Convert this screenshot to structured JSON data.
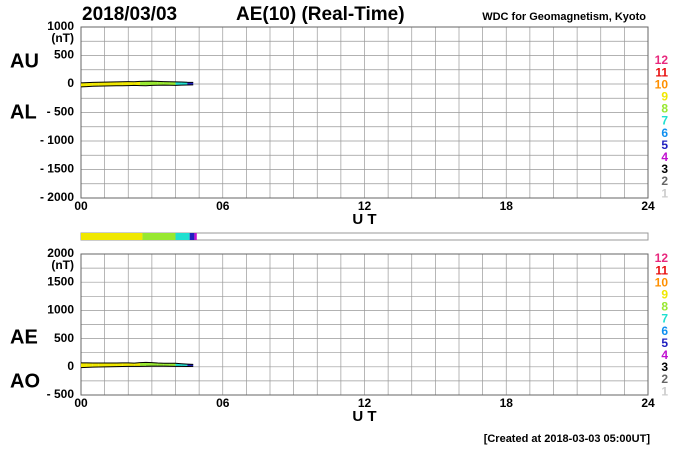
{
  "date": "2018/03/03",
  "title": "AE(10) (Real-Time)",
  "source": "WDC for Geomagnetism, Kyoto",
  "footer": "[Created at 2018-03-03 05:00UT]",
  "legend": [
    {
      "label": "12",
      "color": "#e8287d"
    },
    {
      "label": "11",
      "color": "#e81010"
    },
    {
      "label": "10",
      "color": "#ff9000"
    },
    {
      "label": "9",
      "color": "#f0e800"
    },
    {
      "label": "8",
      "color": "#98e830"
    },
    {
      "label": "7",
      "color": "#20e0d0"
    },
    {
      "label": "6",
      "color": "#1090f0"
    },
    {
      "label": "5",
      "color": "#2020c0"
    },
    {
      "label": "4",
      "color": "#c010d0"
    },
    {
      "label": "3",
      "color": "#000000"
    },
    {
      "label": "2",
      "color": "#666666"
    },
    {
      "label": "1",
      "color": "#cccccc"
    }
  ],
  "activity": [
    {
      "from": 0,
      "to": 2.6,
      "level": 9
    },
    {
      "from": 2.6,
      "to": 4,
      "level": 8
    },
    {
      "from": 4,
      "to": 4.6,
      "level": 7
    },
    {
      "from": 4.6,
      "to": 4.8,
      "level": 5
    },
    {
      "from": 4.8,
      "to": 4.9,
      "level": 4
    }
  ],
  "chart_data": [
    {
      "type": "line",
      "unit": "(nT)",
      "xlabel": "U T",
      "x": [
        0,
        0.25,
        0.5,
        0.75,
        1,
        1.25,
        1.5,
        1.75,
        2,
        2.25,
        2.5,
        2.75,
        3,
        3.25,
        3.5,
        3.75,
        4,
        4.25,
        4.5,
        4.75
      ],
      "series": [
        {
          "name": "AU",
          "color": "#000000",
          "values": [
            20,
            25,
            28,
            30,
            32,
            35,
            38,
            40,
            42,
            40,
            45,
            48,
            50,
            45,
            42,
            40,
            38,
            35,
            30,
            28
          ]
        },
        {
          "name": "AL",
          "color": "#000000",
          "values": [
            -50,
            -45,
            -40,
            -38,
            -35,
            -32,
            -30,
            -30,
            -28,
            -25,
            -28,
            -30,
            -25,
            -22,
            -20,
            -22,
            -25,
            -20,
            -18,
            -15
          ]
        }
      ],
      "xlim": [
        0,
        24
      ],
      "xticks": [
        {
          "value": 0,
          "label": "00"
        },
        {
          "value": 6,
          "label": "06"
        },
        12,
        18,
        24
      ],
      "xgrid": [
        0,
        1,
        2,
        3,
        4,
        5,
        6,
        7,
        8,
        9,
        10,
        11,
        12,
        13,
        14,
        15,
        16,
        17,
        18,
        19,
        20,
        21,
        22,
        23,
        24
      ],
      "ylim": [
        -2000,
        1000
      ],
      "yticks": [
        1000,
        500,
        0,
        {
          "value": -500,
          "label": "- 500"
        },
        {
          "value": -1000,
          "label": "- 1000"
        },
        {
          "value": -1500,
          "label": "- 1500"
        },
        {
          "value": -2000,
          "label": "- 2000"
        }
      ],
      "ygrid": [
        1000,
        750,
        500,
        250,
        0,
        -250,
        -500,
        -750,
        -1000,
        -1250,
        -1500,
        -1750,
        -2000
      ]
    },
    {
      "type": "line",
      "unit": "(nT)",
      "xlabel": "U T",
      "x": [
        0,
        0.25,
        0.5,
        0.75,
        1,
        1.25,
        1.5,
        1.75,
        2,
        2.25,
        2.5,
        2.75,
        3,
        3.25,
        3.5,
        3.75,
        4,
        4.25,
        4.5,
        4.75
      ],
      "series": [
        {
          "name": "AE",
          "color": "#000000",
          "values": [
            70,
            70,
            68,
            68,
            67,
            67,
            68,
            70,
            70,
            65,
            73,
            78,
            75,
            67,
            62,
            62,
            63,
            55,
            48,
            43
          ]
        },
        {
          "name": "AO",
          "color": "#000000",
          "values": [
            -15,
            -10,
            -6,
            -4,
            -2,
            1.5,
            4,
            5,
            7,
            7.5,
            8.5,
            9,
            12.5,
            11.5,
            11,
            9,
            6.5,
            7.5,
            6,
            6.5
          ]
        }
      ],
      "xlim": [
        0,
        24
      ],
      "xticks": [
        {
          "value": 0,
          "label": "00"
        },
        {
          "value": 6,
          "label": "06"
        },
        12,
        18,
        24
      ],
      "xgrid": [
        0,
        1,
        2,
        3,
        4,
        5,
        6,
        7,
        8,
        9,
        10,
        11,
        12,
        13,
        14,
        15,
        16,
        17,
        18,
        19,
        20,
        21,
        22,
        23,
        24
      ],
      "ylim": [
        -500,
        2000
      ],
      "yticks": [
        2000,
        1500,
        1000,
        500,
        0,
        {
          "value": -500,
          "label": "- 500"
        }
      ],
      "ygrid": [
        2000,
        1750,
        1500,
        1250,
        1000,
        750,
        500,
        250,
        0,
        -250,
        -500
      ]
    }
  ]
}
